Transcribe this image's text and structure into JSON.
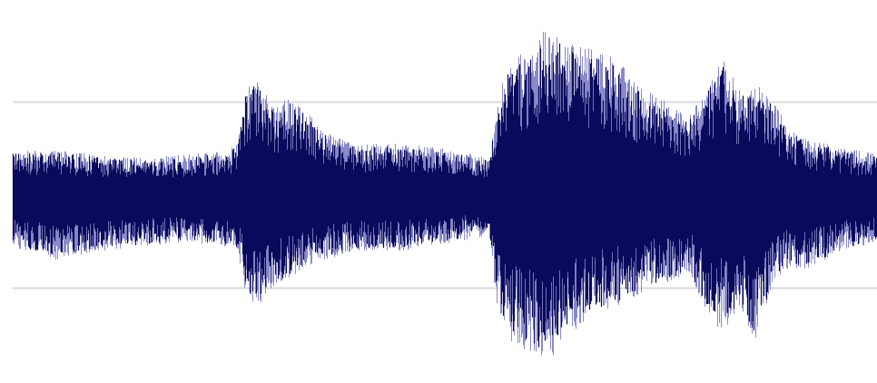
{
  "chart_data": {
    "type": "area",
    "title": "",
    "xlabel": "",
    "ylabel": "",
    "xlim": [
      0,
      100
    ],
    "ylim": [
      -1.0,
      1.0
    ],
    "grid": true,
    "gridlines_y": [
      0.5,
      -0.5
    ],
    "legend": "none",
    "colors": {
      "waveform": "#0a0a5c",
      "waveform_light": "#8a8ac8",
      "gridline": "#d9d9d9",
      "background": "#ffffff"
    },
    "series": [
      {
        "x": [
          0,
          5,
          10,
          15,
          20,
          25,
          26,
          27,
          28,
          30,
          32,
          34,
          36,
          38,
          40,
          45,
          50,
          55,
          56,
          57,
          60,
          62,
          64,
          66,
          68,
          70,
          72,
          74,
          76,
          78,
          80,
          82,
          84,
          86,
          88,
          90,
          92,
          94,
          96,
          98,
          100
        ],
        "envelope_upper": [
          0.24,
          0.24,
          0.22,
          0.2,
          0.22,
          0.24,
          0.3,
          0.6,
          0.63,
          0.5,
          0.52,
          0.45,
          0.35,
          0.3,
          0.27,
          0.28,
          0.25,
          0.2,
          0.46,
          0.7,
          0.8,
          0.92,
          0.85,
          0.8,
          0.78,
          0.74,
          0.6,
          0.55,
          0.5,
          0.42,
          0.55,
          0.74,
          0.58,
          0.6,
          0.5,
          0.35,
          0.3,
          0.28,
          0.25,
          0.24,
          0.22
        ],
        "envelope_lower": [
          -0.28,
          -0.35,
          -0.3,
          -0.28,
          -0.25,
          -0.28,
          -0.32,
          -0.55,
          -0.62,
          -0.5,
          -0.45,
          -0.38,
          -0.35,
          -0.32,
          -0.3,
          -0.3,
          -0.26,
          -0.22,
          -0.6,
          -0.78,
          -0.85,
          -0.9,
          -0.75,
          -0.7,
          -0.65,
          -0.6,
          -0.55,
          -0.5,
          -0.48,
          -0.42,
          -0.6,
          -0.75,
          -0.6,
          -0.8,
          -0.45,
          -0.4,
          -0.4,
          -0.35,
          -0.3,
          -0.28,
          -0.25
        ]
      }
    ]
  }
}
